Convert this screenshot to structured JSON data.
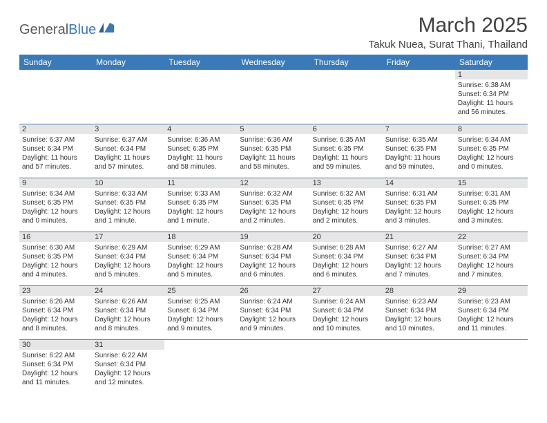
{
  "logo": {
    "text1": "General",
    "text2": "Blue"
  },
  "title": "March 2025",
  "location": "Takuk Nuea, Surat Thani, Thailand",
  "colors": {
    "header_bg": "#3a7ab8",
    "header_text": "#ffffff",
    "daynum_bg": "#e6e6e6",
    "border": "#3a7ab8",
    "text": "#333333",
    "logo_gray": "#5a5a5a",
    "logo_blue": "#3a7ab8"
  },
  "weekdays": [
    "Sunday",
    "Monday",
    "Tuesday",
    "Wednesday",
    "Thursday",
    "Friday",
    "Saturday"
  ],
  "weeks": [
    [
      null,
      null,
      null,
      null,
      null,
      null,
      {
        "n": "1",
        "sr": "Sunrise: 6:38 AM",
        "ss": "Sunset: 6:34 PM",
        "dl": "Daylight: 11 hours and 56 minutes."
      }
    ],
    [
      {
        "n": "2",
        "sr": "Sunrise: 6:37 AM",
        "ss": "Sunset: 6:34 PM",
        "dl": "Daylight: 11 hours and 57 minutes."
      },
      {
        "n": "3",
        "sr": "Sunrise: 6:37 AM",
        "ss": "Sunset: 6:34 PM",
        "dl": "Daylight: 11 hours and 57 minutes."
      },
      {
        "n": "4",
        "sr": "Sunrise: 6:36 AM",
        "ss": "Sunset: 6:35 PM",
        "dl": "Daylight: 11 hours and 58 minutes."
      },
      {
        "n": "5",
        "sr": "Sunrise: 6:36 AM",
        "ss": "Sunset: 6:35 PM",
        "dl": "Daylight: 11 hours and 58 minutes."
      },
      {
        "n": "6",
        "sr": "Sunrise: 6:35 AM",
        "ss": "Sunset: 6:35 PM",
        "dl": "Daylight: 11 hours and 59 minutes."
      },
      {
        "n": "7",
        "sr": "Sunrise: 6:35 AM",
        "ss": "Sunset: 6:35 PM",
        "dl": "Daylight: 11 hours and 59 minutes."
      },
      {
        "n": "8",
        "sr": "Sunrise: 6:34 AM",
        "ss": "Sunset: 6:35 PM",
        "dl": "Daylight: 12 hours and 0 minutes."
      }
    ],
    [
      {
        "n": "9",
        "sr": "Sunrise: 6:34 AM",
        "ss": "Sunset: 6:35 PM",
        "dl": "Daylight: 12 hours and 0 minutes."
      },
      {
        "n": "10",
        "sr": "Sunrise: 6:33 AM",
        "ss": "Sunset: 6:35 PM",
        "dl": "Daylight: 12 hours and 1 minute."
      },
      {
        "n": "11",
        "sr": "Sunrise: 6:33 AM",
        "ss": "Sunset: 6:35 PM",
        "dl": "Daylight: 12 hours and 1 minute."
      },
      {
        "n": "12",
        "sr": "Sunrise: 6:32 AM",
        "ss": "Sunset: 6:35 PM",
        "dl": "Daylight: 12 hours and 2 minutes."
      },
      {
        "n": "13",
        "sr": "Sunrise: 6:32 AM",
        "ss": "Sunset: 6:35 PM",
        "dl": "Daylight: 12 hours and 2 minutes."
      },
      {
        "n": "14",
        "sr": "Sunrise: 6:31 AM",
        "ss": "Sunset: 6:35 PM",
        "dl": "Daylight: 12 hours and 3 minutes."
      },
      {
        "n": "15",
        "sr": "Sunrise: 6:31 AM",
        "ss": "Sunset: 6:35 PM",
        "dl": "Daylight: 12 hours and 3 minutes."
      }
    ],
    [
      {
        "n": "16",
        "sr": "Sunrise: 6:30 AM",
        "ss": "Sunset: 6:35 PM",
        "dl": "Daylight: 12 hours and 4 minutes."
      },
      {
        "n": "17",
        "sr": "Sunrise: 6:29 AM",
        "ss": "Sunset: 6:34 PM",
        "dl": "Daylight: 12 hours and 5 minutes."
      },
      {
        "n": "18",
        "sr": "Sunrise: 6:29 AM",
        "ss": "Sunset: 6:34 PM",
        "dl": "Daylight: 12 hours and 5 minutes."
      },
      {
        "n": "19",
        "sr": "Sunrise: 6:28 AM",
        "ss": "Sunset: 6:34 PM",
        "dl": "Daylight: 12 hours and 6 minutes."
      },
      {
        "n": "20",
        "sr": "Sunrise: 6:28 AM",
        "ss": "Sunset: 6:34 PM",
        "dl": "Daylight: 12 hours and 6 minutes."
      },
      {
        "n": "21",
        "sr": "Sunrise: 6:27 AM",
        "ss": "Sunset: 6:34 PM",
        "dl": "Daylight: 12 hours and 7 minutes."
      },
      {
        "n": "22",
        "sr": "Sunrise: 6:27 AM",
        "ss": "Sunset: 6:34 PM",
        "dl": "Daylight: 12 hours and 7 minutes."
      }
    ],
    [
      {
        "n": "23",
        "sr": "Sunrise: 6:26 AM",
        "ss": "Sunset: 6:34 PM",
        "dl": "Daylight: 12 hours and 8 minutes."
      },
      {
        "n": "24",
        "sr": "Sunrise: 6:26 AM",
        "ss": "Sunset: 6:34 PM",
        "dl": "Daylight: 12 hours and 8 minutes."
      },
      {
        "n": "25",
        "sr": "Sunrise: 6:25 AM",
        "ss": "Sunset: 6:34 PM",
        "dl": "Daylight: 12 hours and 9 minutes."
      },
      {
        "n": "26",
        "sr": "Sunrise: 6:24 AM",
        "ss": "Sunset: 6:34 PM",
        "dl": "Daylight: 12 hours and 9 minutes."
      },
      {
        "n": "27",
        "sr": "Sunrise: 6:24 AM",
        "ss": "Sunset: 6:34 PM",
        "dl": "Daylight: 12 hours and 10 minutes."
      },
      {
        "n": "28",
        "sr": "Sunrise: 6:23 AM",
        "ss": "Sunset: 6:34 PM",
        "dl": "Daylight: 12 hours and 10 minutes."
      },
      {
        "n": "29",
        "sr": "Sunrise: 6:23 AM",
        "ss": "Sunset: 6:34 PM",
        "dl": "Daylight: 12 hours and 11 minutes."
      }
    ],
    [
      {
        "n": "30",
        "sr": "Sunrise: 6:22 AM",
        "ss": "Sunset: 6:34 PM",
        "dl": "Daylight: 12 hours and 11 minutes."
      },
      {
        "n": "31",
        "sr": "Sunrise: 6:22 AM",
        "ss": "Sunset: 6:34 PM",
        "dl": "Daylight: 12 hours and 12 minutes."
      },
      null,
      null,
      null,
      null,
      null
    ]
  ]
}
